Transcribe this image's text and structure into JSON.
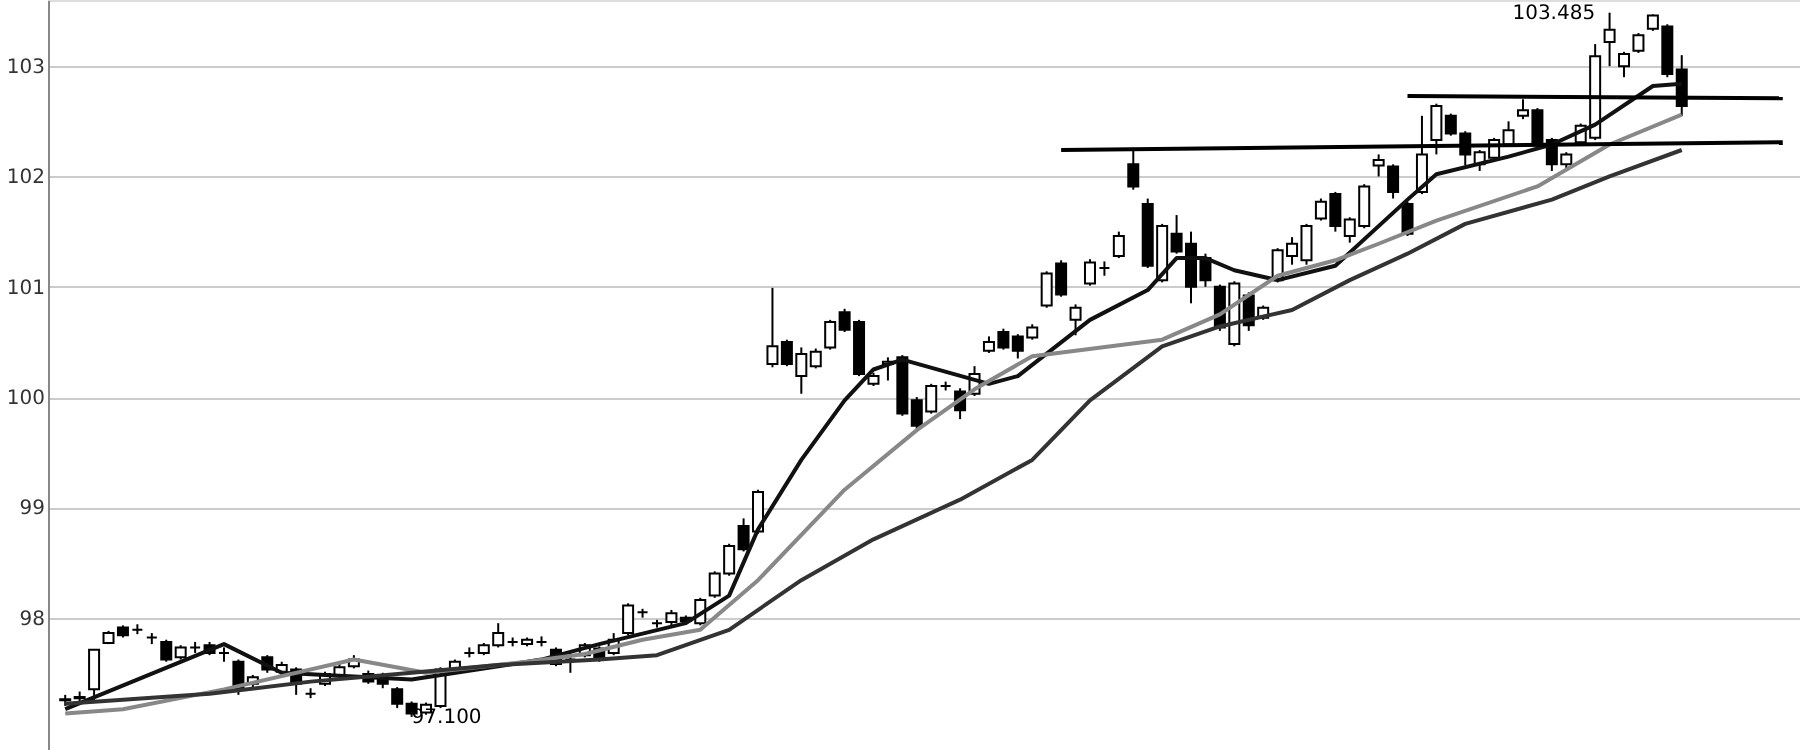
{
  "chart_data": {
    "type": "candlestick",
    "categories": [
      null,
      null,
      null,
      null,
      null,
      null,
      null,
      null,
      null,
      null,
      null,
      null,
      null,
      null,
      null,
      null,
      null,
      null,
      null,
      null,
      null,
      null,
      null,
      null,
      null,
      null,
      null,
      null,
      null,
      null,
      null,
      null,
      null,
      null,
      null,
      null,
      null,
      null,
      null,
      null,
      null,
      null,
      null,
      null,
      null,
      null,
      null,
      null,
      null,
      null,
      null,
      null,
      null,
      null,
      null,
      null,
      null,
      null,
      null,
      null,
      null,
      null,
      null,
      null,
      null,
      null,
      null,
      null,
      null,
      null,
      null,
      null,
      null,
      null,
      null,
      null,
      null,
      null,
      null,
      null,
      null,
      null,
      null,
      null,
      null,
      null,
      null,
      null,
      null,
      null,
      null,
      null,
      null,
      null,
      null,
      null,
      null,
      null,
      null,
      null,
      null,
      null,
      null,
      null,
      null,
      null,
      null,
      null,
      null,
      null,
      null,
      null,
      null,
      null,
      null,
      null,
      null,
      null,
      null,
      null
    ],
    "color": "#000000",
    "ohlc": [
      [
        97.25,
        97.3,
        97.2,
        97.26
      ],
      [
        97.27,
        97.33,
        97.24,
        97.28
      ],
      [
        97.35,
        97.71,
        97.25,
        97.71
      ],
      [
        97.77,
        97.88,
        97.76,
        97.86
      ],
      [
        97.91,
        97.93,
        97.82,
        97.84
      ],
      [
        97.89,
        97.94,
        97.85,
        97.89
      ],
      [
        97.82,
        97.86,
        97.76,
        97.82
      ],
      [
        97.78,
        97.8,
        97.6,
        97.62
      ],
      [
        97.64,
        97.75,
        97.62,
        97.73
      ],
      [
        97.73,
        97.78,
        97.68,
        97.73
      ],
      [
        97.75,
        97.78,
        97.66,
        97.68
      ],
      [
        97.68,
        97.73,
        97.6,
        97.68
      ],
      [
        97.6,
        97.62,
        97.3,
        97.35
      ],
      [
        97.4,
        97.48,
        97.36,
        97.46
      ],
      [
        97.64,
        97.66,
        97.5,
        97.53
      ],
      [
        97.51,
        97.6,
        97.48,
        97.57
      ],
      [
        97.53,
        97.55,
        97.3,
        97.4
      ],
      [
        97.31,
        97.36,
        97.27,
        97.31
      ],
      [
        97.4,
        97.51,
        97.38,
        97.49
      ],
      [
        97.47,
        97.6,
        97.45,
        97.55
      ],
      [
        97.56,
        97.66,
        97.54,
        97.62
      ],
      [
        97.49,
        97.52,
        97.4,
        97.42
      ],
      [
        97.47,
        97.5,
        97.36,
        97.4
      ],
      [
        97.35,
        97.37,
        97.18,
        97.22
      ],
      [
        97.22,
        97.24,
        97.1,
        97.13
      ],
      [
        97.14,
        97.23,
        97.12,
        97.21
      ],
      [
        97.2,
        97.55,
        97.18,
        97.53
      ],
      [
        97.53,
        97.62,
        97.51,
        97.6
      ],
      [
        97.68,
        97.73,
        97.64,
        97.68
      ],
      [
        97.68,
        97.77,
        97.66,
        97.75
      ],
      [
        97.75,
        97.95,
        97.73,
        97.86
      ],
      [
        97.78,
        97.82,
        97.74,
        97.78
      ],
      [
        97.76,
        97.82,
        97.74,
        97.8
      ],
      [
        97.78,
        97.83,
        97.74,
        97.78
      ],
      [
        97.71,
        97.73,
        97.56,
        97.58
      ],
      [
        97.62,
        97.68,
        97.5,
        97.62
      ],
      [
        97.66,
        97.77,
        97.64,
        97.75
      ],
      [
        97.72,
        97.74,
        97.6,
        97.62
      ],
      [
        97.68,
        97.86,
        97.66,
        97.8
      ],
      [
        97.86,
        98.13,
        97.84,
        98.11
      ],
      [
        98.05,
        98.08,
        98.0,
        98.05
      ],
      [
        97.95,
        97.98,
        97.91,
        97.95
      ],
      [
        97.96,
        98.07,
        97.93,
        98.04
      ],
      [
        98.0,
        98.02,
        97.95,
        97.97
      ],
      [
        97.95,
        98.18,
        97.93,
        98.16
      ],
      [
        98.2,
        98.42,
        98.18,
        98.4
      ],
      [
        98.4,
        98.67,
        98.38,
        98.65
      ],
      [
        98.83,
        98.9,
        98.6,
        98.62
      ],
      [
        98.78,
        99.16,
        98.76,
        99.14
      ],
      [
        100.3,
        100.99,
        100.27,
        100.46
      ],
      [
        100.5,
        100.52,
        100.28,
        100.3
      ],
      [
        100.19,
        100.45,
        100.03,
        100.39
      ],
      [
        100.28,
        100.44,
        100.26,
        100.41
      ],
      [
        100.45,
        100.7,
        100.43,
        100.68
      ],
      [
        100.77,
        100.8,
        100.59,
        100.61
      ],
      [
        100.68,
        100.7,
        100.19,
        100.21
      ],
      [
        100.12,
        100.22,
        100.1,
        100.19
      ],
      [
        100.3,
        100.36,
        100.15,
        100.32
      ],
      [
        100.36,
        100.38,
        99.83,
        99.85
      ],
      [
        99.97,
        100.0,
        99.7,
        99.74
      ],
      [
        99.87,
        100.12,
        99.85,
        100.1
      ],
      [
        100.1,
        100.14,
        100.06,
        100.1
      ],
      [
        100.05,
        100.08,
        99.8,
        99.88
      ],
      [
        100.03,
        100.28,
        100.01,
        100.21
      ],
      [
        100.42,
        100.55,
        100.4,
        100.5
      ],
      [
        100.59,
        100.62,
        100.43,
        100.45
      ],
      [
        100.55,
        100.57,
        100.35,
        100.42
      ],
      [
        100.54,
        100.66,
        100.52,
        100.63
      ],
      [
        100.83,
        101.14,
        100.81,
        101.12
      ],
      [
        101.21,
        101.24,
        100.91,
        100.93
      ],
      [
        100.7,
        100.84,
        100.56,
        100.81
      ],
      [
        101.03,
        101.25,
        101.01,
        101.22
      ],
      [
        101.17,
        101.23,
        101.1,
        101.17
      ],
      [
        101.28,
        101.5,
        101.26,
        101.46
      ],
      [
        102.11,
        102.26,
        101.88,
        101.91
      ],
      [
        101.75,
        101.8,
        101.17,
        101.19
      ],
      [
        101.06,
        101.57,
        101.04,
        101.55
      ],
      [
        101.48,
        101.65,
        101.3,
        101.32
      ],
      [
        101.39,
        101.5,
        100.85,
        101.0
      ],
      [
        101.26,
        101.3,
        101.0,
        101.06
      ],
      [
        101.0,
        101.02,
        100.6,
        100.63
      ],
      [
        100.48,
        101.05,
        100.46,
        101.03
      ],
      [
        100.92,
        100.95,
        100.6,
        100.65
      ],
      [
        100.72,
        100.83,
        100.7,
        100.81
      ],
      [
        101.06,
        101.35,
        101.04,
        101.33
      ],
      [
        101.28,
        101.45,
        101.2,
        101.39
      ],
      [
        101.24,
        101.57,
        101.2,
        101.55
      ],
      [
        101.62,
        101.8,
        101.6,
        101.77
      ],
      [
        101.84,
        101.86,
        101.5,
        101.55
      ],
      [
        101.46,
        101.63,
        101.4,
        101.61
      ],
      [
        101.55,
        101.93,
        101.53,
        101.91
      ],
      [
        102.1,
        102.2,
        102.0,
        102.15
      ],
      [
        102.09,
        102.11,
        101.8,
        101.86
      ],
      [
        101.75,
        101.77,
        101.46,
        101.48
      ],
      [
        101.86,
        102.55,
        101.84,
        102.2
      ],
      [
        102.33,
        102.66,
        102.2,
        102.64
      ],
      [
        102.55,
        102.57,
        102.37,
        102.39
      ],
      [
        102.39,
        102.41,
        102.1,
        102.2
      ],
      [
        102.11,
        102.24,
        102.05,
        102.22
      ],
      [
        102.17,
        102.35,
        102.15,
        102.33
      ],
      [
        102.29,
        102.5,
        102.27,
        102.42
      ],
      [
        102.55,
        102.7,
        102.52,
        102.6
      ],
      [
        102.6,
        102.62,
        102.27,
        102.29
      ],
      [
        102.33,
        102.35,
        102.05,
        102.11
      ],
      [
        102.11,
        102.22,
        102.05,
        102.2
      ],
      [
        102.31,
        102.48,
        102.29,
        102.46
      ],
      [
        102.35,
        103.2,
        102.33,
        103.09
      ],
      [
        103.22,
        103.485,
        103.0,
        103.33
      ],
      [
        103.0,
        103.13,
        102.9,
        103.11
      ],
      [
        103.14,
        103.3,
        103.12,
        103.28
      ],
      [
        103.34,
        103.47,
        103.32,
        103.46
      ],
      [
        103.36,
        103.38,
        102.9,
        102.93
      ],
      [
        102.97,
        103.1,
        102.55,
        102.64
      ],
      null,
      null,
      null,
      null,
      null,
      null,
      null
    ],
    "series": [
      {
        "type": "line",
        "color": "#111111",
        "values": [
          97.17,
          null,
          null,
          null,
          null,
          null,
          null,
          null,
          null,
          null,
          null,
          97.76,
          null,
          null,
          null,
          97.5,
          null,
          null,
          null,
          null,
          null,
          null,
          null,
          null,
          97.44,
          null,
          null,
          null,
          null,
          null,
          null,
          null,
          null,
          97.62,
          null,
          null,
          null,
          97.76,
          null,
          null,
          null,
          null,
          null,
          97.95,
          null,
          null,
          98.2,
          null,
          98.8,
          null,
          null,
          99.43,
          null,
          null,
          99.97,
          null,
          100.25,
          null,
          100.34,
          null,
          null,
          null,
          null,
          null,
          100.12,
          null,
          100.19,
          null,
          null,
          null,
          null,
          100.7,
          null,
          null,
          null,
          100.97,
          null,
          101.26,
          null,
          101.26,
          null,
          101.15,
          null,
          null,
          101.06,
          null,
          null,
          null,
          101.19,
          null,
          null,
          null,
          null,
          101.79,
          null,
          102.02,
          null,
          null,
          null,
          null,
          102.18,
          null,
          null,
          102.29,
          null,
          null,
          102.47,
          null,
          null,
          null,
          102.82,
          null,
          102.84,
          null,
          null,
          null,
          null,
          null,
          null,
          null
        ]
      },
      {
        "type": "line",
        "color": "#888888",
        "values": [
          97.13,
          null,
          null,
          null,
          97.17,
          null,
          null,
          null,
          null,
          null,
          null,
          97.35,
          null,
          null,
          null,
          null,
          null,
          null,
          null,
          null,
          97.62,
          null,
          null,
          null,
          null,
          97.5,
          null,
          null,
          null,
          null,
          null,
          null,
          97.6,
          null,
          null,
          null,
          97.67,
          null,
          null,
          null,
          97.8,
          null,
          null,
          null,
          97.89,
          null,
          null,
          null,
          98.34,
          null,
          null,
          null,
          null,
          null,
          99.16,
          null,
          null,
          null,
          null,
          99.7,
          null,
          null,
          null,
          100.07,
          null,
          null,
          null,
          100.37,
          null,
          null,
          null,
          null,
          null,
          null,
          null,
          null,
          100.52,
          null,
          null,
          null,
          100.75,
          null,
          null,
          null,
          101.1,
          null,
          null,
          null,
          101.24,
          null,
          null,
          101.39,
          null,
          null,
          null,
          101.6,
          null,
          null,
          null,
          null,
          null,
          null,
          101.91,
          null,
          null,
          null,
          null,
          102.29,
          null,
          null,
          null,
          null,
          102.56,
          null,
          null,
          null,
          null,
          null,
          null,
          null
        ]
      },
      {
        "type": "line",
        "color": "#333333",
        "values": [
          97.22,
          null,
          null,
          null,
          null,
          null,
          null,
          null,
          null,
          null,
          97.31,
          null,
          null,
          null,
          null,
          null,
          null,
          97.42,
          null,
          null,
          null,
          null,
          null,
          null,
          97.5,
          null,
          null,
          null,
          null,
          null,
          97.57,
          null,
          null,
          null,
          null,
          null,
          null,
          97.62,
          null,
          null,
          null,
          97.66,
          null,
          null,
          null,
          null,
          97.89,
          null,
          null,
          null,
          null,
          98.34,
          null,
          null,
          null,
          null,
          98.71,
          null,
          null,
          null,
          null,
          null,
          99.07,
          null,
          null,
          null,
          null,
          99.43,
          null,
          null,
          null,
          99.97,
          null,
          null,
          null,
          null,
          100.46,
          null,
          null,
          null,
          100.64,
          null,
          null,
          null,
          null,
          100.79,
          null,
          null,
          null,
          101.06,
          null,
          null,
          null,
          101.3,
          null,
          null,
          null,
          101.57,
          null,
          null,
          null,
          null,
          null,
          101.79,
          null,
          null,
          null,
          102.0,
          null,
          null,
          null,
          null,
          102.24,
          null,
          null,
          null,
          null,
          null,
          null,
          null
        ]
      },
      {
        "type": "line",
        "color": "#000000",
        "values": [
          null,
          null,
          null,
          null,
          null,
          null,
          null,
          null,
          null,
          null,
          null,
          null,
          null,
          null,
          null,
          null,
          null,
          null,
          null,
          null,
          null,
          null,
          null,
          null,
          null,
          null,
          null,
          null,
          null,
          null,
          null,
          null,
          null,
          null,
          null,
          null,
          null,
          null,
          null,
          null,
          null,
          null,
          null,
          null,
          null,
          null,
          null,
          null,
          null,
          null,
          null,
          null,
          null,
          null,
          null,
          null,
          null,
          null,
          null,
          null,
          null,
          null,
          null,
          null,
          null,
          null,
          null,
          null,
          null,
          null,
          null,
          null,
          null,
          null,
          null,
          null,
          null,
          null,
          null,
          null,
          null,
          null,
          null,
          null,
          null,
          null,
          null,
          null,
          null,
          null,
          null,
          null,
          null,
          102.73,
          null,
          null,
          null,
          null,
          null,
          null,
          null,
          null,
          null,
          null,
          null,
          null,
          null,
          null,
          null,
          null,
          null,
          null,
          null,
          null,
          null,
          null,
          null,
          null,
          null,
          102.71
        ]
      },
      {
        "type": "line",
        "color": "#000000",
        "values": [
          null,
          null,
          null,
          null,
          null,
          null,
          null,
          null,
          null,
          null,
          null,
          null,
          null,
          null,
          null,
          null,
          null,
          null,
          null,
          null,
          null,
          null,
          null,
          null,
          null,
          null,
          null,
          null,
          null,
          null,
          null,
          null,
          null,
          null,
          null,
          null,
          null,
          null,
          null,
          null,
          null,
          null,
          null,
          null,
          null,
          null,
          null,
          null,
          null,
          null,
          null,
          null,
          null,
          null,
          null,
          null,
          null,
          null,
          null,
          null,
          null,
          null,
          null,
          null,
          null,
          null,
          null,
          null,
          null,
          102.24,
          null,
          null,
          null,
          null,
          null,
          null,
          null,
          null,
          null,
          null,
          null,
          null,
          null,
          null,
          null,
          null,
          null,
          null,
          null,
          null,
          null,
          null,
          null,
          null,
          null,
          null,
          null,
          null,
          null,
          null,
          null,
          null,
          null,
          null,
          null,
          null,
          null,
          null,
          null,
          null,
          null,
          null,
          null,
          null,
          null,
          null,
          null,
          null,
          null,
          102.31
        ]
      }
    ],
    "ylim": [
      96.8,
      103.6
    ],
    "yticks": [
      98,
      99,
      100,
      101,
      102,
      103
    ],
    "grid": "y",
    "tick_labels": "y",
    "annotations": [
      "103.485",
      "97.100"
    ]
  }
}
